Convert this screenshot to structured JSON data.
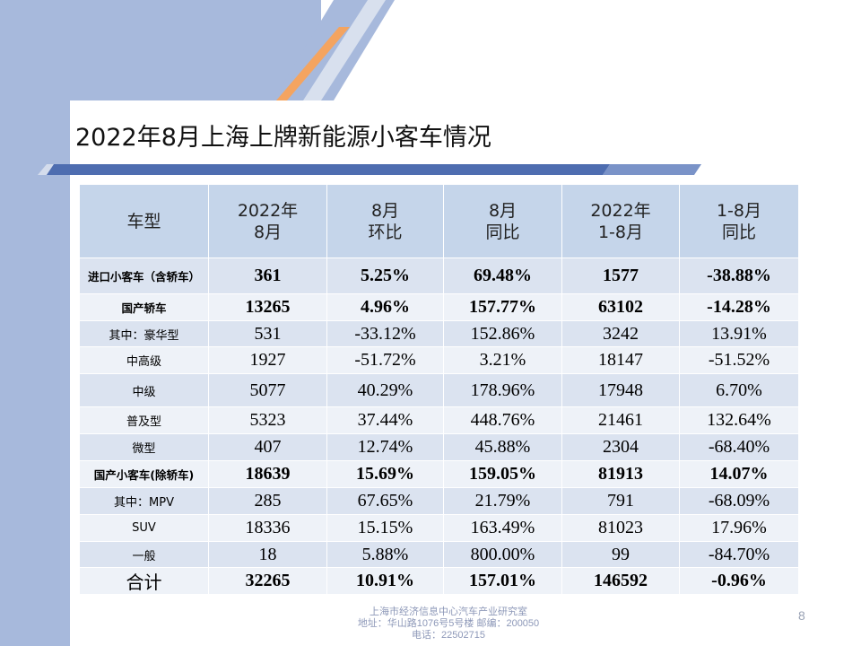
{
  "slide": {
    "title": "2022年8月上海上牌新能源小客车情况",
    "page_number": "8",
    "footer": {
      "line1": "上海市经济信息中心汽车产业研究室",
      "line2": "地址：华山路1076号5号楼   邮编：200050",
      "line3": "电话：22502715"
    },
    "colors": {
      "background_panel": "#a7b9dc",
      "accent_stripe": "#f4a460",
      "header_fill": "#c5d5ea",
      "row_fill_dark": "#dbe3f0",
      "row_fill_light": "#eef2f8",
      "title_bar": "#4e6db0"
    }
  },
  "table": {
    "headers": {
      "type": "车型",
      "c1_line1": "2022年",
      "c1_line2": "8月",
      "c2_line1": "8月",
      "c2_line2": "环比",
      "c3_line1": "8月",
      "c3_line2": "同比",
      "c4_line1": "2022年",
      "c4_line2": "1-8月",
      "c5_line1": "1-8月",
      "c5_line2": "同比"
    },
    "rows": [
      {
        "label": "进口小客车（含轿车）",
        "c1": "361",
        "c2": "5.25%",
        "c3": "69.48%",
        "c4": "1577",
        "c5": "-38.88%"
      },
      {
        "label": "国产轿车",
        "c1": "13265",
        "c2": "4.96%",
        "c3": "157.77%",
        "c4": "63102",
        "c5": "-14.28%"
      },
      {
        "label": "其中：豪华型",
        "c1": "531",
        "c2": "-33.12%",
        "c3": "152.86%",
        "c4": "3242",
        "c5": "13.91%"
      },
      {
        "label": "中高级",
        "c1": "1927",
        "c2": "-51.72%",
        "c3": "3.21%",
        "c4": "18147",
        "c5": "-51.52%"
      },
      {
        "label": "中级",
        "c1": "5077",
        "c2": "40.29%",
        "c3": "178.96%",
        "c4": "17948",
        "c5": "6.70%"
      },
      {
        "label": "普及型",
        "c1": "5323",
        "c2": "37.44%",
        "c3": "448.76%",
        "c4": "21461",
        "c5": "132.64%"
      },
      {
        "label": "微型",
        "c1": "407",
        "c2": "12.74%",
        "c3": "45.88%",
        "c4": "2304",
        "c5": "-68.40%"
      },
      {
        "label": "国产小客车(除轿车)",
        "c1": "18639",
        "c2": "15.69%",
        "c3": "159.05%",
        "c4": "81913",
        "c5": "14.07%"
      },
      {
        "label": "其中：MPV",
        "c1": "285",
        "c2": "67.65%",
        "c3": "21.79%",
        "c4": "791",
        "c5": "-68.09%"
      },
      {
        "label": "SUV",
        "c1": "18336",
        "c2": "15.15%",
        "c3": "163.49%",
        "c4": "81023",
        "c5": "17.96%"
      },
      {
        "label": "一般",
        "c1": "18",
        "c2": "5.88%",
        "c3": "800.00%",
        "c4": "99",
        "c5": "-84.70%"
      },
      {
        "label": "合计",
        "c1": "32265",
        "c2": "10.91%",
        "c3": "157.01%",
        "c4": "146592",
        "c5": "-0.96%"
      }
    ]
  }
}
